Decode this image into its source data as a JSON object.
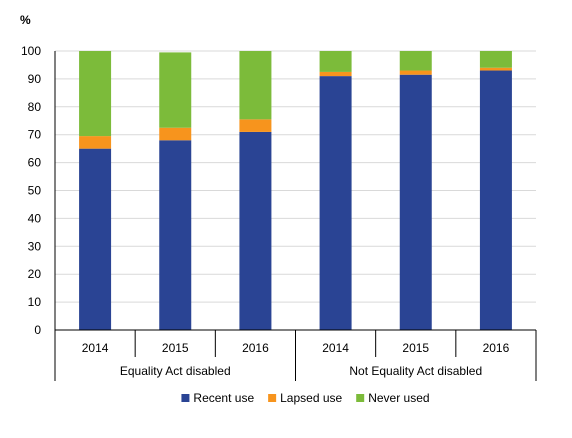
{
  "chart_data": {
    "type": "bar",
    "stacked": true,
    "y_unit": "%",
    "ylim": [
      0,
      100
    ],
    "yticks": [
      0,
      10,
      20,
      30,
      40,
      50,
      60,
      70,
      80,
      90,
      100
    ],
    "grid": true,
    "legend_position": "bottom",
    "groups": [
      {
        "label": "Equality Act disabled",
        "categories": [
          "2014",
          "2015",
          "2016"
        ]
      },
      {
        "label": "Not Equality Act disabled",
        "categories": [
          "2014",
          "2015",
          "2016"
        ]
      }
    ],
    "categories": [
      "2014",
      "2015",
      "2016",
      "2014",
      "2015",
      "2016"
    ],
    "series": [
      {
        "name": "Recent use",
        "color": "#2a4494",
        "values": [
          65,
          68,
          71,
          91,
          91.5,
          93
        ]
      },
      {
        "name": "Lapsed use",
        "color": "#f7941d",
        "values": [
          4.5,
          4.5,
          4.5,
          1.5,
          1.5,
          1
        ]
      },
      {
        "name": "Never used",
        "color": "#7cbb3a",
        "values": [
          30.5,
          27,
          24.5,
          7.5,
          7,
          6
        ]
      }
    ]
  }
}
